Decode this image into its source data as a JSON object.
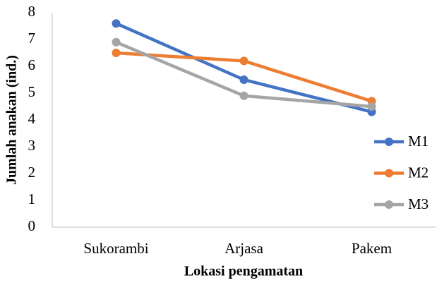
{
  "chart_data": {
    "type": "line",
    "x_label": "Lokasi pengamatan",
    "y_label": "Jumlah anakan (ind.)",
    "categories": [
      "Sukorambi",
      "Arjasa",
      "Pakem"
    ],
    "series": [
      {
        "name": "M1",
        "color": "#4472c4",
        "values": [
          7.6,
          5.5,
          4.3
        ]
      },
      {
        "name": "M2",
        "color": "#ed7d31",
        "values": [
          6.5,
          6.2,
          4.7
        ]
      },
      {
        "name": "M3",
        "color": "#a5a5a5",
        "values": [
          6.9,
          4.9,
          4.5
        ]
      }
    ],
    "ylim": [
      0,
      8
    ],
    "yticks": [
      0,
      1,
      2,
      3,
      4,
      5,
      6,
      7,
      8
    ],
    "grid": false,
    "legend": "right"
  }
}
